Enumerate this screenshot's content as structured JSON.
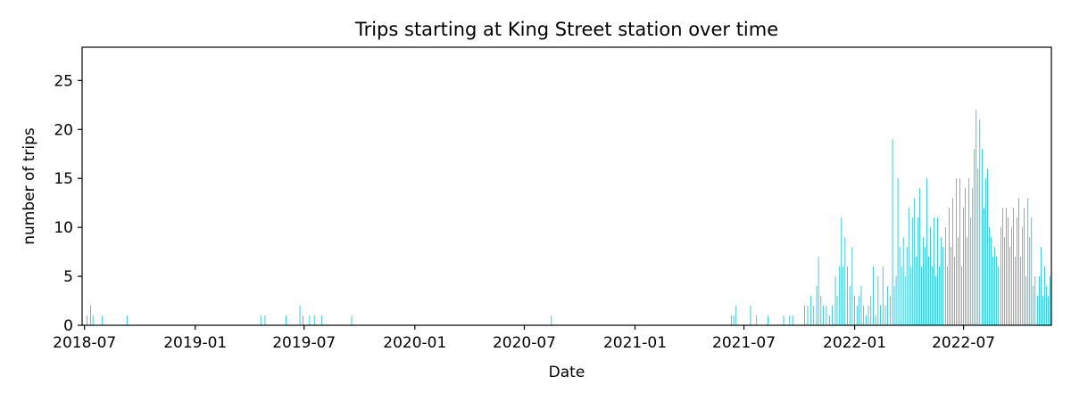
{
  "chart_data": {
    "type": "bar",
    "title": "Trips starting at King Street station over time",
    "xlabel": "Date",
    "ylabel": "number of trips",
    "color": "#17becf",
    "grid": false,
    "legend": "none",
    "xlim": [
      "2018-06-27",
      "2022-11-24"
    ],
    "ylim": [
      0,
      28.4
    ],
    "xticks": [
      "2018-07",
      "2019-01",
      "2019-07",
      "2020-01",
      "2020-07",
      "2021-01",
      "2021-07",
      "2022-01",
      "2022-07"
    ],
    "yticks": [
      0,
      5,
      10,
      15,
      20,
      25
    ],
    "points": [
      {
        "x": "2018-07-05",
        "y": 1
      },
      {
        "x": "2018-07-11",
        "y": 2
      },
      {
        "x": "2018-07-15",
        "y": 1
      },
      {
        "x": "2018-07-30",
        "y": 1
      },
      {
        "x": "2018-09-10",
        "y": 1
      },
      {
        "x": "2019-04-20",
        "y": 1
      },
      {
        "x": "2019-04-27",
        "y": 1
      },
      {
        "x": "2019-06-01",
        "y": 1
      },
      {
        "x": "2019-06-24",
        "y": 2
      },
      {
        "x": "2019-06-29",
        "y": 1
      },
      {
        "x": "2019-07-10",
        "y": 1
      },
      {
        "x": "2019-07-18",
        "y": 1
      },
      {
        "x": "2019-07-30",
        "y": 1
      },
      {
        "x": "2019-09-18",
        "y": 1
      },
      {
        "x": "2020-08-15",
        "y": 1
      },
      {
        "x": "2021-06-10",
        "y": 1
      },
      {
        "x": "2021-06-14",
        "y": 1
      },
      {
        "x": "2021-06-18",
        "y": 2
      },
      {
        "x": "2021-07-12",
        "y": 2
      },
      {
        "x": "2021-07-22",
        "y": 1
      },
      {
        "x": "2021-08-10",
        "y": 1
      },
      {
        "x": "2021-09-05",
        "y": 1
      },
      {
        "x": "2021-09-15",
        "y": 1
      },
      {
        "x": "2021-09-20",
        "y": 1
      },
      {
        "x": "2021-10-10",
        "y": 2
      },
      {
        "x": "2021-10-15",
        "y": 2
      },
      {
        "x": "2021-10-20",
        "y": 3
      },
      {
        "x": "2021-10-25",
        "y": 2
      },
      {
        "x": "2021-10-30",
        "y": 4
      },
      {
        "x": "2021-11-02",
        "y": 7
      },
      {
        "x": "2021-11-06",
        "y": 3
      },
      {
        "x": "2021-11-10",
        "y": 2
      },
      {
        "x": "2021-11-15",
        "y": 2
      },
      {
        "x": "2021-11-20",
        "y": 1
      },
      {
        "x": "2021-11-25",
        "y": 2
      },
      {
        "x": "2021-11-30",
        "y": 5
      },
      {
        "x": "2021-12-03",
        "y": 3
      },
      {
        "x": "2021-12-07",
        "y": 6
      },
      {
        "x": "2021-12-10",
        "y": 11
      },
      {
        "x": "2021-12-13",
        "y": 6
      },
      {
        "x": "2021-12-16",
        "y": 9
      },
      {
        "x": "2021-12-20",
        "y": 6
      },
      {
        "x": "2021-12-24",
        "y": 4
      },
      {
        "x": "2021-12-28",
        "y": 8
      },
      {
        "x": "2022-01-01",
        "y": 3
      },
      {
        "x": "2022-01-05",
        "y": 2
      },
      {
        "x": "2022-01-08",
        "y": 3
      },
      {
        "x": "2022-01-12",
        "y": 4
      },
      {
        "x": "2022-01-16",
        "y": 2
      },
      {
        "x": "2022-01-20",
        "y": 1
      },
      {
        "x": "2022-01-24",
        "y": 2
      },
      {
        "x": "2022-01-28",
        "y": 3
      },
      {
        "x": "2022-02-01",
        "y": 6
      },
      {
        "x": "2022-02-05",
        "y": 1
      },
      {
        "x": "2022-02-09",
        "y": 5
      },
      {
        "x": "2022-02-13",
        "y": 2
      },
      {
        "x": "2022-02-17",
        "y": 6
      },
      {
        "x": "2022-02-21",
        "y": 2
      },
      {
        "x": "2022-02-25",
        "y": 4
      },
      {
        "x": "2022-03-01",
        "y": 3
      },
      {
        "x": "2022-03-05",
        "y": 19
      },
      {
        "x": "2022-03-08",
        "y": 4
      },
      {
        "x": "2022-03-11",
        "y": 5
      },
      {
        "x": "2022-03-14",
        "y": 15
      },
      {
        "x": "2022-03-17",
        "y": 8
      },
      {
        "x": "2022-03-20",
        "y": 6
      },
      {
        "x": "2022-03-23",
        "y": 9
      },
      {
        "x": "2022-03-26",
        "y": 5
      },
      {
        "x": "2022-03-29",
        "y": 8
      },
      {
        "x": "2022-04-01",
        "y": 12
      },
      {
        "x": "2022-04-04",
        "y": 6
      },
      {
        "x": "2022-04-07",
        "y": 11
      },
      {
        "x": "2022-04-10",
        "y": 13
      },
      {
        "x": "2022-04-13",
        "y": 7
      },
      {
        "x": "2022-04-16",
        "y": 11
      },
      {
        "x": "2022-04-19",
        "y": 14
      },
      {
        "x": "2022-04-22",
        "y": 6
      },
      {
        "x": "2022-04-25",
        "y": 9
      },
      {
        "x": "2022-04-28",
        "y": 8
      },
      {
        "x": "2022-05-01",
        "y": 15
      },
      {
        "x": "2022-05-04",
        "y": 7
      },
      {
        "x": "2022-05-07",
        "y": 10
      },
      {
        "x": "2022-05-10",
        "y": 6
      },
      {
        "x": "2022-05-13",
        "y": 11
      },
      {
        "x": "2022-05-16",
        "y": 5
      },
      {
        "x": "2022-05-19",
        "y": 11
      },
      {
        "x": "2022-05-22",
        "y": 6
      },
      {
        "x": "2022-05-25",
        "y": 9
      },
      {
        "x": "2022-05-28",
        "y": 8
      },
      {
        "x": "2022-06-01",
        "y": 10
      },
      {
        "x": "2022-06-04",
        "y": 6
      },
      {
        "x": "2022-06-07",
        "y": 12
      },
      {
        "x": "2022-06-10",
        "y": 8
      },
      {
        "x": "2022-06-13",
        "y": 13
      },
      {
        "x": "2022-06-16",
        "y": 7
      },
      {
        "x": "2022-06-19",
        "y": 15
      },
      {
        "x": "2022-06-22",
        "y": 9
      },
      {
        "x": "2022-06-25",
        "y": 15
      },
      {
        "x": "2022-06-28",
        "y": 6
      },
      {
        "x": "2022-07-01",
        "y": 12
      },
      {
        "x": "2022-07-04",
        "y": 14
      },
      {
        "x": "2022-07-07",
        "y": 9
      },
      {
        "x": "2022-07-10",
        "y": 15
      },
      {
        "x": "2022-07-13",
        "y": 11
      },
      {
        "x": "2022-07-16",
        "y": 14
      },
      {
        "x": "2022-07-19",
        "y": 18
      },
      {
        "x": "2022-07-22",
        "y": 22
      },
      {
        "x": "2022-07-25",
        "y": 16
      },
      {
        "x": "2022-07-28",
        "y": 21
      },
      {
        "x": "2022-08-01",
        "y": 18
      },
      {
        "x": "2022-08-04",
        "y": 12
      },
      {
        "x": "2022-08-07",
        "y": 15
      },
      {
        "x": "2022-08-10",
        "y": 16
      },
      {
        "x": "2022-08-13",
        "y": 10
      },
      {
        "x": "2022-08-16",
        "y": 9
      },
      {
        "x": "2022-08-19",
        "y": 7
      },
      {
        "x": "2022-08-22",
        "y": 8
      },
      {
        "x": "2022-08-25",
        "y": 7
      },
      {
        "x": "2022-08-28",
        "y": 6
      },
      {
        "x": "2022-09-01",
        "y": 10
      },
      {
        "x": "2022-09-04",
        "y": 12
      },
      {
        "x": "2022-09-07",
        "y": 9
      },
      {
        "x": "2022-09-10",
        "y": 12
      },
      {
        "x": "2022-09-13",
        "y": 11
      },
      {
        "x": "2022-09-16",
        "y": 8
      },
      {
        "x": "2022-09-19",
        "y": 10
      },
      {
        "x": "2022-09-22",
        "y": 12
      },
      {
        "x": "2022-09-25",
        "y": 7
      },
      {
        "x": "2022-09-28",
        "y": 11
      },
      {
        "x": "2022-10-01",
        "y": 13
      },
      {
        "x": "2022-10-04",
        "y": 7
      },
      {
        "x": "2022-10-07",
        "y": 10
      },
      {
        "x": "2022-10-10",
        "y": 12
      },
      {
        "x": "2022-10-13",
        "y": 5
      },
      {
        "x": "2022-10-16",
        "y": 13
      },
      {
        "x": "2022-10-19",
        "y": 9
      },
      {
        "x": "2022-10-22",
        "y": 11
      },
      {
        "x": "2022-10-25",
        "y": 4
      },
      {
        "x": "2022-10-28",
        "y": 5
      },
      {
        "x": "2022-11-01",
        "y": 3
      },
      {
        "x": "2022-11-04",
        "y": 5
      },
      {
        "x": "2022-11-07",
        "y": 8
      },
      {
        "x": "2022-11-10",
        "y": 3
      },
      {
        "x": "2022-11-13",
        "y": 6
      },
      {
        "x": "2022-11-16",
        "y": 4
      },
      {
        "x": "2022-11-19",
        "y": 3
      },
      {
        "x": "2022-11-22",
        "y": 5
      }
    ]
  }
}
